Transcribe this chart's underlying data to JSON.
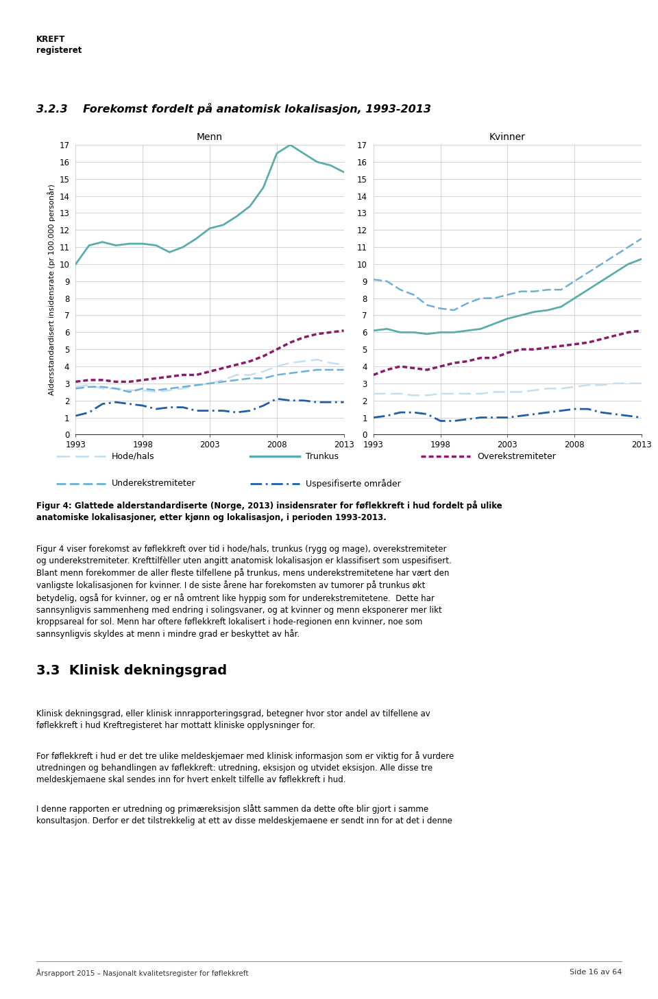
{
  "years": [
    1993,
    1994,
    1995,
    1996,
    1997,
    1998,
    1999,
    2000,
    2001,
    2002,
    2003,
    2004,
    2005,
    2006,
    2007,
    2008,
    2009,
    2010,
    2011,
    2012,
    2013
  ],
  "men": {
    "trunkus": [
      10.0,
      11.1,
      11.3,
      11.1,
      11.2,
      11.2,
      11.1,
      10.7,
      11.0,
      11.5,
      12.1,
      12.3,
      12.8,
      13.4,
      14.5,
      16.5,
      17.0,
      16.5,
      16.0,
      15.8,
      15.4
    ],
    "hode_hals": [
      2.8,
      2.9,
      2.7,
      2.7,
      2.6,
      2.6,
      2.5,
      2.6,
      2.7,
      2.9,
      3.0,
      3.2,
      3.5,
      3.5,
      3.7,
      4.0,
      4.2,
      4.3,
      4.4,
      4.2,
      4.1
    ],
    "overekstremiteter": [
      3.1,
      3.2,
      3.2,
      3.1,
      3.1,
      3.2,
      3.3,
      3.4,
      3.5,
      3.5,
      3.7,
      3.9,
      4.1,
      4.3,
      4.6,
      5.0,
      5.4,
      5.7,
      5.9,
      6.0,
      6.1
    ],
    "underekstremiteter": [
      2.7,
      2.8,
      2.8,
      2.7,
      2.5,
      2.7,
      2.6,
      2.7,
      2.8,
      2.9,
      3.0,
      3.1,
      3.2,
      3.3,
      3.3,
      3.5,
      3.6,
      3.7,
      3.8,
      3.8,
      3.8
    ],
    "uspesifiserte": [
      1.1,
      1.3,
      1.8,
      1.9,
      1.8,
      1.7,
      1.5,
      1.6,
      1.6,
      1.4,
      1.4,
      1.4,
      1.3,
      1.4,
      1.7,
      2.1,
      2.0,
      2.0,
      1.9,
      1.9,
      1.9
    ]
  },
  "women": {
    "trunkus": [
      6.1,
      6.2,
      6.0,
      6.0,
      5.9,
      6.0,
      6.0,
      6.1,
      6.2,
      6.5,
      6.8,
      7.0,
      7.2,
      7.3,
      7.5,
      8.0,
      8.5,
      9.0,
      9.5,
      10.0,
      10.3
    ],
    "hode_hals": [
      2.4,
      2.4,
      2.4,
      2.3,
      2.3,
      2.4,
      2.4,
      2.4,
      2.4,
      2.5,
      2.5,
      2.5,
      2.6,
      2.7,
      2.7,
      2.8,
      2.9,
      2.9,
      3.0,
      3.0,
      3.0
    ],
    "overekstremiteter": [
      3.5,
      3.8,
      4.0,
      3.9,
      3.8,
      4.0,
      4.2,
      4.3,
      4.5,
      4.5,
      4.8,
      5.0,
      5.0,
      5.1,
      5.2,
      5.3,
      5.4,
      5.6,
      5.8,
      6.0,
      6.1
    ],
    "underekstremiteter": [
      9.1,
      9.0,
      8.5,
      8.2,
      7.6,
      7.4,
      7.3,
      7.7,
      8.0,
      8.0,
      8.2,
      8.4,
      8.4,
      8.5,
      8.5,
      9.0,
      9.5,
      10.0,
      10.5,
      11.0,
      11.5
    ],
    "uspesifiserte": [
      1.0,
      1.1,
      1.3,
      1.3,
      1.2,
      0.8,
      0.8,
      0.9,
      1.0,
      1.0,
      1.0,
      1.1,
      1.2,
      1.3,
      1.4,
      1.5,
      1.5,
      1.3,
      1.2,
      1.1,
      1.0
    ]
  },
  "section_title": "3.2.3    Forekomst fordelt på anatomisk lokalisasjon, 1993-2013",
  "ylabel": "Aldersstandardisert insidensrate (pr 100.000 personår)",
  "ylim": [
    0,
    17
  ],
  "yticks": [
    0,
    1,
    2,
    3,
    4,
    5,
    6,
    7,
    8,
    9,
    10,
    11,
    12,
    13,
    14,
    15,
    16,
    17
  ],
  "xticks": [
    1993,
    1998,
    2003,
    2008,
    2013
  ],
  "color_trunkus": "#5aadaa",
  "color_hode_hals": "#c5dff0",
  "color_overekstremiteter": "#8b1a6b",
  "color_underekstremiteter": "#6ab0d8",
  "color_uspesifiserte": "#1e5fa5",
  "fig_caption_bold": "Figur 4: Glattede alderstandardiserte (Norge, 2013) insidensrater for føflekkreft i hud fordelt på ulike\nanatomiske lokalisasjoner, etter kjønn og lokalisasjon, i perioden 1993-2013.",
  "body_fig4": "Figur 4 viser forekomst av føflekkreft over tid i hode/hals, trunkus (rygg og mage), overekstremiteter\nog underekstremiteter. Krefttilfèller uten angitt anatomisk lokalisasjon er klassifisert som uspesifisert.\nBlant menn forekommer de aller fleste tilfellene på trunkus, mens underekstremitetene har vært den\nvanligste lokalisasjonen for kvinner. I de siste årene har forekomsten av tumorer på trunkus økt\nbetydelig, også for kvinner, og er nå omtrent like hyppig som for underekstremitetene.  Dette har\nsannsynligvis sammenheng med endring i solingsvaner, og at kvinner og menn eksponerer mer likt\nkroppsareal for sol. Menn har oftere føflekkreft lokalisert i hode-regionen enn kvinner, noe som\nsannsynligvis skyldes at menn i mindre grad er beskyttet av hår.",
  "section_33": "3.3  Klinisk dekningsgrad",
  "body_33a": "Klinisk dekningsgrad, eller klinisk innrapporteringsgrad, betegner hvor stor andel av tilfellene av\nføflekkreft i hud Kreftregisteret har mottatt kliniske opplysninger for.",
  "body_33b": "For føflekkreft i hud er det tre ulike meldeskjemaer med klinisk informasjon som er viktig for å vurdere\nutredningen og behandlingen av føflekkreft: utredning, eksisjon og utvidet eksisjon. Alle disse tre\nmeldeskjemaene skal sendes inn for hvert enkelt tilfelle av føflekkreft i hud.",
  "body_33c": "I denne rapporten er utredning og primæreksisjon slått sammen da dette ofte blir gjort i samme\nkonsultasjon. Derfor er det tilstrekkelig at ett av disse meldeskjemaene er sendt inn for at det i denne",
  "footer_right": "Side 16 av 64",
  "footer_left": "Årsrapport 2015 – Nasjonalt kvalitetsregister for føflekkreft"
}
